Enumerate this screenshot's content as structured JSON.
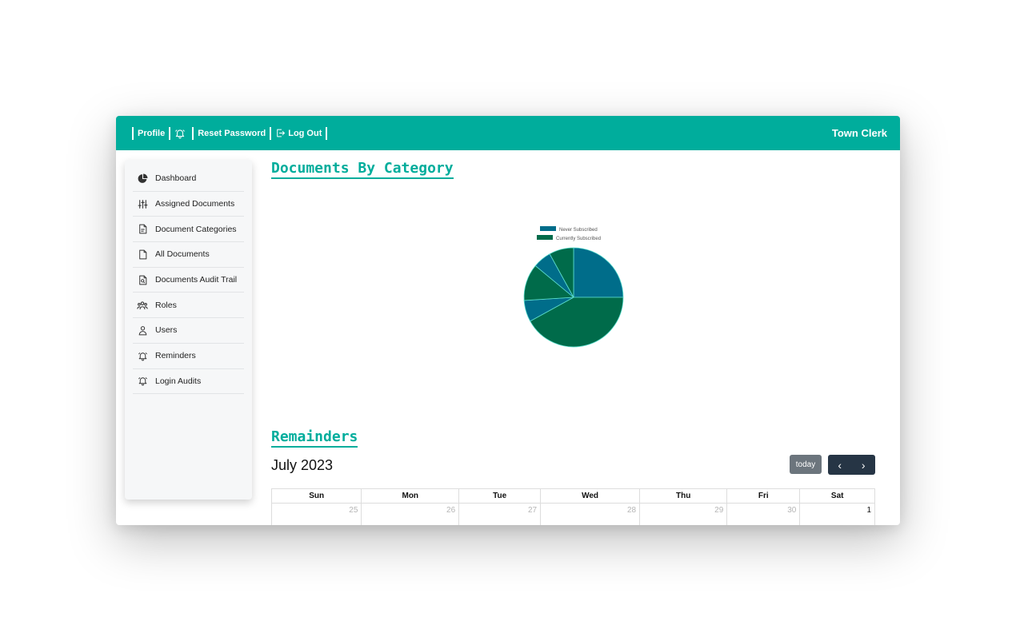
{
  "topbar": {
    "profile_label": "Profile",
    "reset_password_label": "Reset Password",
    "logout_label": "Log Out",
    "brand": "Town Clerk"
  },
  "sidebar": {
    "items": [
      {
        "label": "Dashboard",
        "icon": "pie-chart-icon"
      },
      {
        "label": "Assigned Documents",
        "icon": "sliders-icon"
      },
      {
        "label": "Document Categories",
        "icon": "document-text-icon"
      },
      {
        "label": "All Documents",
        "icon": "document-icon"
      },
      {
        "label": "Documents Audit Trail",
        "icon": "document-search-icon"
      },
      {
        "label": "Roles",
        "icon": "users-group-icon"
      },
      {
        "label": "Users",
        "icon": "user-icon"
      },
      {
        "label": "Reminders",
        "icon": "bell-icon"
      },
      {
        "label": "Login Audits",
        "icon": "bell-icon"
      }
    ]
  },
  "main": {
    "chart_title": "Documents By Category",
    "reminders_title": "Remainders"
  },
  "chart_data": {
    "type": "pie",
    "legend": [
      "Never Subscribed",
      "Currently Subscribed"
    ],
    "legend_colors": [
      "#006d8a",
      "#006b4a"
    ],
    "legend_placement": "top",
    "slices": [
      {
        "value": 25,
        "color": "#006d8a"
      },
      {
        "value": 42,
        "color": "#006b4a"
      },
      {
        "value": 7,
        "color": "#006d8a"
      },
      {
        "value": 12,
        "color": "#006b4a"
      },
      {
        "value": 6,
        "color": "#006d8a"
      },
      {
        "value": 8,
        "color": "#006b4a"
      }
    ],
    "stroke_color": "#5fe0d0"
  },
  "calendar": {
    "title": "July 2023",
    "today_label": "today",
    "prev_label": "‹",
    "next_label": "›",
    "weekdays": [
      "Sun",
      "Mon",
      "Tue",
      "Wed",
      "Thu",
      "Fri",
      "Sat"
    ],
    "first_week": [
      {
        "day": "25",
        "current": false
      },
      {
        "day": "26",
        "current": false
      },
      {
        "day": "27",
        "current": false
      },
      {
        "day": "28",
        "current": false
      },
      {
        "day": "29",
        "current": false
      },
      {
        "day": "30",
        "current": false
      },
      {
        "day": "1",
        "current": true
      }
    ]
  },
  "colors": {
    "accent": "#00ad9c",
    "nav_button": "#263545",
    "today_button": "#6c757d"
  }
}
